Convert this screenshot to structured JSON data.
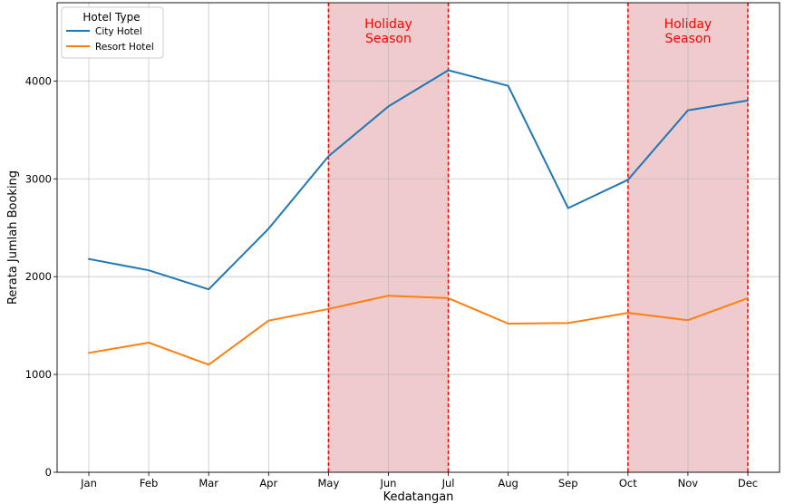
{
  "chart_data": {
    "type": "line",
    "title": "",
    "xlabel": "Kedatangan",
    "ylabel": "Rerata Jumlah Booking",
    "categories": [
      "Jan",
      "Feb",
      "Mar",
      "Apr",
      "May",
      "Jun",
      "Jul",
      "Aug",
      "Sep",
      "Oct",
      "Nov",
      "Dec"
    ],
    "ylim": [
      0,
      4800
    ],
    "yticks": [
      0,
      1000,
      2000,
      3000,
      4000
    ],
    "grid": true,
    "legend": {
      "title": "Hotel Type",
      "position": "top-left"
    },
    "series": [
      {
        "name": "City Hotel",
        "color": "#1f77b4",
        "values": [
          2180,
          2065,
          1870,
          2490,
          3230,
          3740,
          4110,
          3950,
          2700,
          2990,
          3700,
          3800
        ]
      },
      {
        "name": "Resort Hotel",
        "color": "#ff7f0e",
        "values": [
          1220,
          1325,
          1100,
          1550,
          1670,
          1805,
          1780,
          1520,
          1525,
          1630,
          1555,
          1780
        ]
      }
    ],
    "annotations": [
      {
        "label": "Holiday\nSeason",
        "from": "May",
        "to": "Jul",
        "fill": "#d9848a",
        "line_color": "#ff0000"
      },
      {
        "label": "Holiday\nSeason",
        "from": "Oct",
        "to": "Dec",
        "fill": "#d9848a",
        "line_color": "#ff0000"
      }
    ]
  }
}
